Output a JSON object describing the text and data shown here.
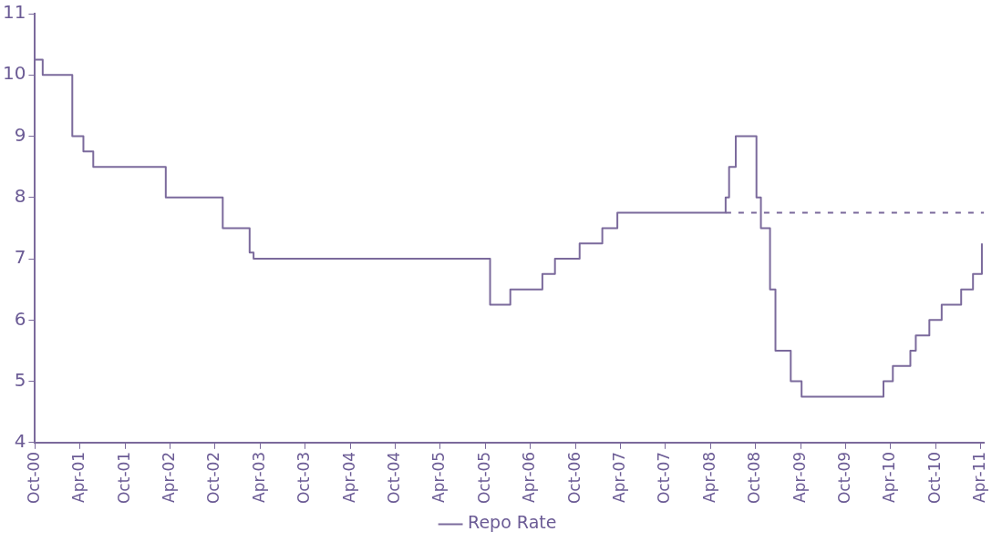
{
  "chart_data": {
    "type": "step",
    "xlim": [
      "2000-10-01",
      "2011-04-15"
    ],
    "xticks": [
      {
        "value": "2000-10-01",
        "label": "Oct-00"
      },
      {
        "value": "2001-04-01",
        "label": "Apr-01"
      },
      {
        "value": "2001-10-01",
        "label": "Oct-01"
      },
      {
        "value": "2002-04-01",
        "label": "Apr-02"
      },
      {
        "value": "2002-10-01",
        "label": "Oct-02"
      },
      {
        "value": "2003-04-01",
        "label": "Apr-03"
      },
      {
        "value": "2003-10-01",
        "label": "Oct-03"
      },
      {
        "value": "2004-04-01",
        "label": "Apr-04"
      },
      {
        "value": "2004-10-01",
        "label": "Oct-04"
      },
      {
        "value": "2005-04-01",
        "label": "Apr-05"
      },
      {
        "value": "2005-10-01",
        "label": "Oct-05"
      },
      {
        "value": "2006-04-01",
        "label": "Apr-06"
      },
      {
        "value": "2006-10-01",
        "label": "Oct-06"
      },
      {
        "value": "2007-04-01",
        "label": "Apr-07"
      },
      {
        "value": "2007-10-01",
        "label": "Oct-07"
      },
      {
        "value": "2008-04-01",
        "label": "Apr-08"
      },
      {
        "value": "2008-10-01",
        "label": "Oct-08"
      },
      {
        "value": "2009-04-01",
        "label": "Apr-09"
      },
      {
        "value": "2009-10-01",
        "label": "Oct-09"
      },
      {
        "value": "2010-04-01",
        "label": "Apr-10"
      },
      {
        "value": "2010-10-01",
        "label": "Oct-10"
      },
      {
        "value": "2011-04-01",
        "label": "Apr-11"
      }
    ],
    "ylim": [
      4,
      11
    ],
    "yticks": [
      4,
      5,
      6,
      7,
      8,
      9,
      10,
      11
    ],
    "grid": false,
    "legend": "bottom",
    "marker": "none",
    "series": [
      {
        "name": "Repo Rate",
        "color": "#7b6a9c",
        "line_style": "solid",
        "x": [
          "2000-10-01",
          "2000-11-01",
          "2001-03-01",
          "2001-04-15",
          "2001-05-25",
          "2002-03-15",
          "2002-11-01",
          "2003-02-18",
          "2003-03-06",
          "2005-10-20",
          "2006-01-10",
          "2006-05-20",
          "2006-07-10",
          "2006-10-18",
          "2007-01-18",
          "2007-03-20",
          "2008-06-01",
          "2008-06-15",
          "2008-07-12",
          "2008-10-04",
          "2008-10-22",
          "2008-11-28",
          "2008-12-20",
          "2009-02-20",
          "2009-04-05",
          "2010-03-03",
          "2010-04-10",
          "2010-06-20",
          "2010-07-12",
          "2010-09-05",
          "2010-10-25",
          "2011-01-12",
          "2011-03-01",
          "2011-04-06"
        ],
        "values": [
          10.25,
          10,
          9,
          8.75,
          8.5,
          8,
          7.5,
          7.1,
          7,
          6.25,
          6.5,
          6.75,
          7,
          7.25,
          7.5,
          7.75,
          8,
          8.5,
          9,
          8,
          7.5,
          6.5,
          5.5,
          5,
          4.75,
          5,
          5.25,
          5.5,
          5.75,
          6,
          6.25,
          6.5,
          6.75,
          7.25
        ]
      },
      {
        "color": "#7b6a9c",
        "line_style": "dashed",
        "x": [
          "2008-06-01",
          "2011-04-15"
        ],
        "values": [
          7.75,
          7.75
        ]
      }
    ]
  }
}
